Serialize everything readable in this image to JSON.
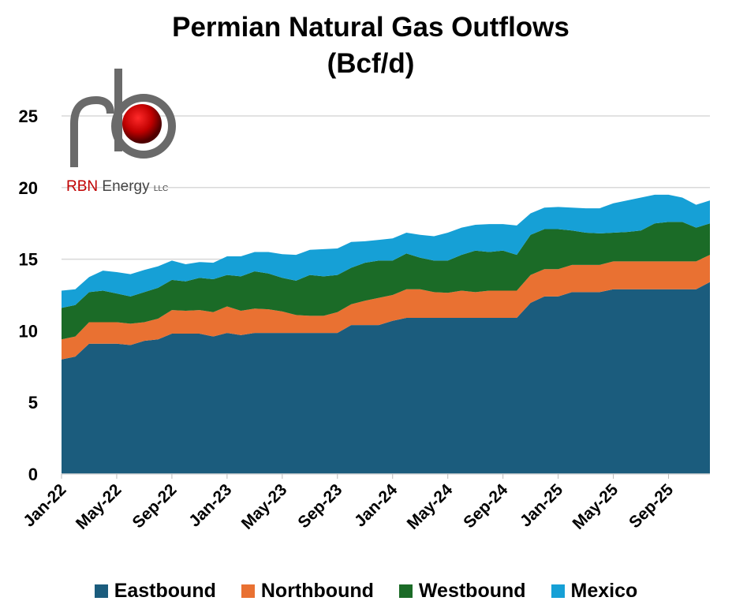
{
  "chart_data": {
    "type": "area",
    "stacked": true,
    "title": "Permian Natural Gas Outflows",
    "subtitle": "(Bcf/d)",
    "xlabel": "",
    "ylabel": "",
    "ylim": [
      0,
      25
    ],
    "yticks": [
      0,
      5,
      10,
      15,
      20,
      25
    ],
    "grid": true,
    "legend": "bottom",
    "x": [
      "Jan-22",
      "Feb-22",
      "Mar-22",
      "Apr-22",
      "May-22",
      "Jun-22",
      "Jul-22",
      "Aug-22",
      "Sep-22",
      "Oct-22",
      "Nov-22",
      "Dec-22",
      "Jan-23",
      "Feb-23",
      "Mar-23",
      "Apr-23",
      "May-23",
      "Jun-23",
      "Jul-23",
      "Aug-23",
      "Sep-23",
      "Oct-23",
      "Nov-23",
      "Dec-23",
      "Jan-24",
      "Feb-24",
      "Mar-24",
      "Apr-24",
      "May-24",
      "Jun-24",
      "Jul-24",
      "Aug-24",
      "Sep-24",
      "Oct-24",
      "Nov-24",
      "Dec-24",
      "Jan-25",
      "Feb-25",
      "Mar-25",
      "Apr-25",
      "May-25",
      "Jun-25",
      "Jul-25",
      "Aug-25",
      "Sep-25",
      "Oct-25",
      "Nov-25",
      "Dec-25"
    ],
    "xtick_labels": [
      "Jan-22",
      "May-22",
      "Sep-22",
      "Jan-23",
      "May-23",
      "Sep-23",
      "Jan-24",
      "May-24",
      "Sep-24",
      "Jan-25",
      "May-25",
      "Sep-25"
    ],
    "series": [
      {
        "name": "Eastbound",
        "color": "#1b5c7d",
        "values": [
          8.0,
          8.2,
          9.1,
          9.1,
          9.1,
          9.0,
          9.3,
          9.4,
          9.8,
          9.8,
          9.8,
          9.6,
          9.85,
          9.7,
          9.85,
          9.85,
          9.85,
          9.85,
          9.85,
          9.85,
          9.85,
          10.4,
          10.4,
          10.4,
          10.7,
          10.9,
          10.9,
          10.9,
          10.9,
          10.9,
          10.9,
          10.9,
          10.9,
          10.9,
          11.95,
          12.4,
          12.4,
          12.7,
          12.7,
          12.7,
          12.9,
          12.9,
          12.9,
          12.9,
          12.9,
          12.9,
          12.9,
          13.4
        ]
      },
      {
        "name": "Northbound",
        "color": "#e97132",
        "values": [
          1.4,
          1.4,
          1.5,
          1.5,
          1.5,
          1.5,
          1.3,
          1.45,
          1.65,
          1.6,
          1.65,
          1.7,
          1.85,
          1.7,
          1.7,
          1.65,
          1.5,
          1.25,
          1.2,
          1.2,
          1.45,
          1.45,
          1.7,
          1.9,
          1.8,
          2.0,
          2.0,
          1.8,
          1.75,
          1.9,
          1.8,
          1.9,
          1.9,
          1.9,
          1.95,
          1.9,
          1.9,
          1.9,
          1.9,
          1.9,
          1.95,
          1.95,
          1.95,
          1.95,
          1.95,
          1.95,
          1.95,
          1.9
        ]
      },
      {
        "name": "Westbound",
        "color": "#1b6b27",
        "values": [
          2.2,
          2.2,
          2.1,
          2.2,
          2.0,
          1.9,
          2.1,
          2.15,
          2.1,
          2.05,
          2.25,
          2.3,
          2.2,
          2.4,
          2.6,
          2.5,
          2.35,
          2.4,
          2.85,
          2.75,
          2.6,
          2.55,
          2.65,
          2.6,
          2.4,
          2.5,
          2.2,
          2.2,
          2.25,
          2.5,
          2.9,
          2.7,
          2.8,
          2.5,
          2.8,
          2.8,
          2.8,
          2.4,
          2.25,
          2.2,
          2.0,
          2.05,
          2.15,
          2.65,
          2.75,
          2.75,
          2.35,
          2.2
        ]
      },
      {
        "name": "Mexico",
        "color": "#16a0d6",
        "values": [
          1.2,
          1.1,
          1.05,
          1.4,
          1.5,
          1.55,
          1.55,
          1.5,
          1.35,
          1.2,
          1.1,
          1.15,
          1.3,
          1.4,
          1.35,
          1.5,
          1.65,
          1.8,
          1.75,
          1.9,
          1.85,
          1.8,
          1.5,
          1.45,
          1.55,
          1.45,
          1.6,
          1.7,
          1.95,
          1.9,
          1.8,
          1.95,
          1.85,
          2.05,
          1.5,
          1.5,
          1.55,
          1.6,
          1.7,
          1.75,
          2.05,
          2.2,
          2.3,
          2.0,
          1.9,
          1.7,
          1.6,
          1.6
        ]
      }
    ]
  },
  "logo": {
    "text": "RBN Energy",
    "suffix": "LLC"
  }
}
